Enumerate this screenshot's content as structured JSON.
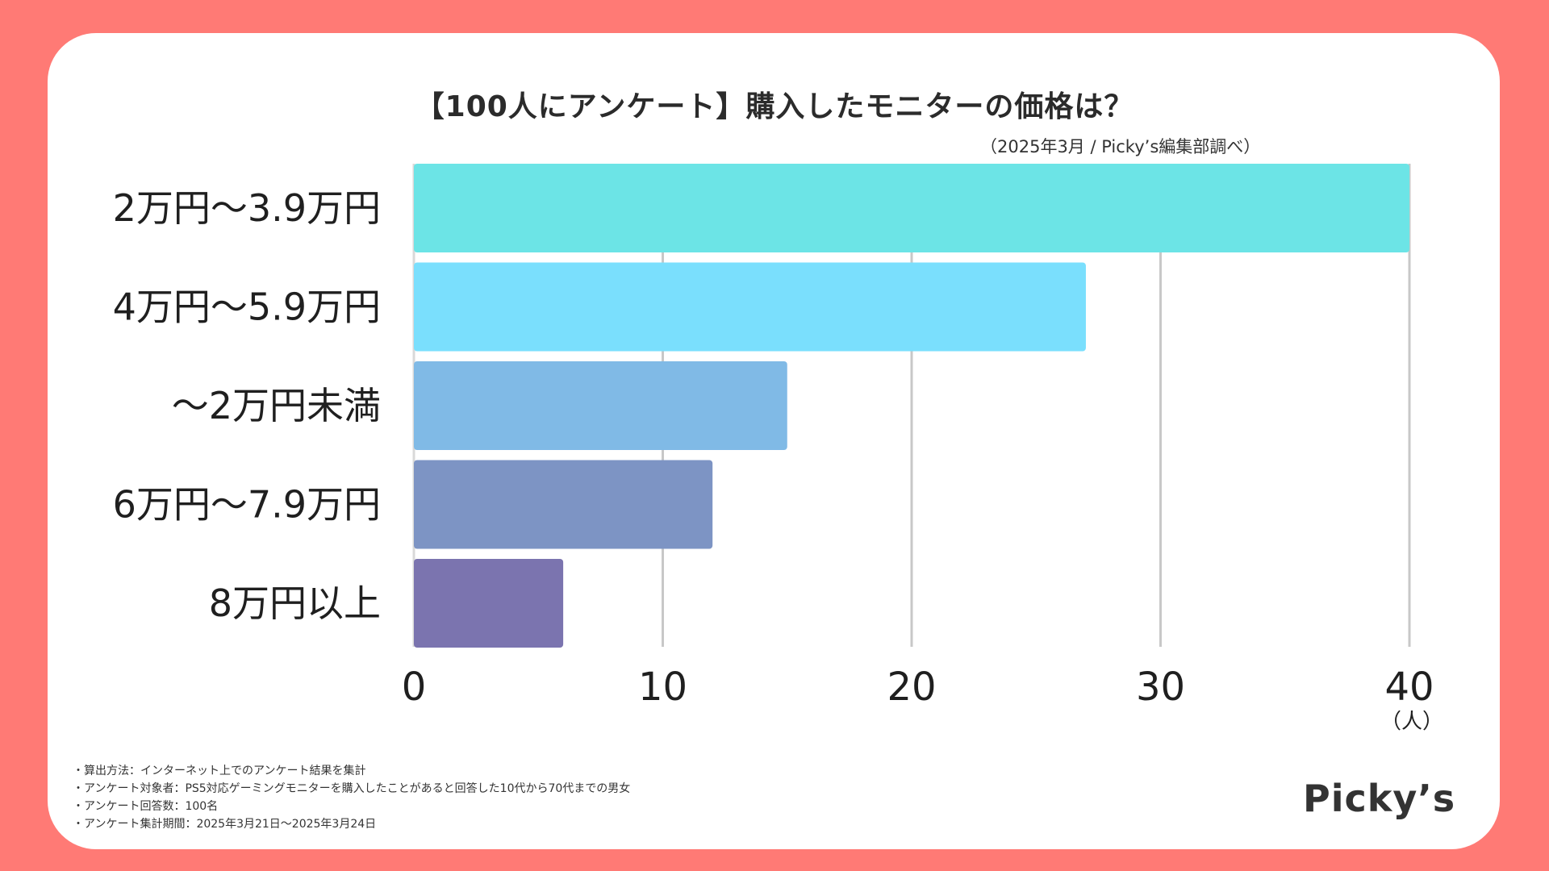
{
  "header": {
    "title": "【100人にアンケート】購入したモニターの価格は？",
    "source": "（2025年3月 / Picky’s編集部調べ）"
  },
  "chart_data": {
    "type": "bar",
    "orientation": "horizontal",
    "categories": [
      "2万円〜3.9万円",
      "4万円〜5.9万円",
      "〜2万円未満",
      "6万円〜7.9万円",
      "8万円以上"
    ],
    "values": [
      40,
      27,
      15,
      12,
      6
    ],
    "colors": [
      "#6CE4E6",
      "#7ADFFD",
      "#80BAE6",
      "#7D94C4",
      "#7B74AF"
    ],
    "xlim": [
      0,
      40
    ],
    "xticks": [
      "0",
      "10",
      "20",
      "30",
      "40"
    ],
    "xunit": "（人）",
    "grid": true
  },
  "notes": [
    "・算出方法：インターネット上でのアンケート結果を集計",
    "・アンケート対象者：PS5対応ゲーミングモニターを購入したことがあると回答した10代から70代までの男女",
    "・アンケート回答数：100名",
    "・アンケート集計期間：2025年3月21日〜2025年3月24日"
  ],
  "brand": {
    "logo_text": "Picky’s"
  }
}
